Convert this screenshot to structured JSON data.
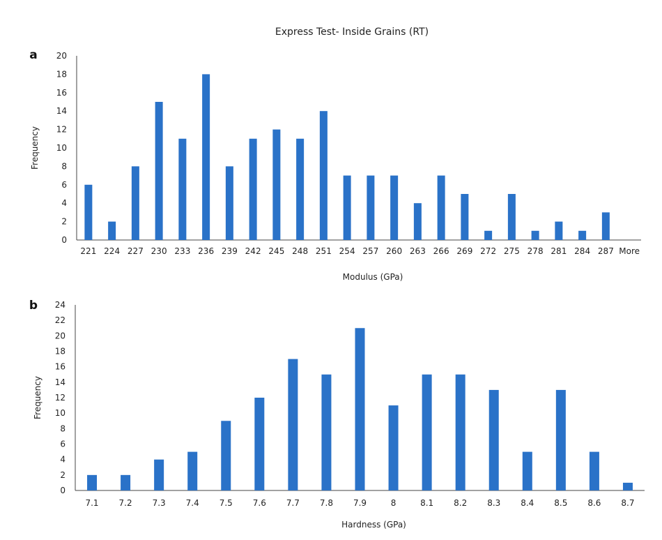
{
  "figure_title": "Express Test- Inside Grains (RT)",
  "chart_data": [
    {
      "type": "bar",
      "panel": "a",
      "title": "Express Test- Inside Grains (RT)",
      "xlabel": "Modulus (GPa)",
      "ylabel": "Frequency",
      "ylim": [
        0,
        20
      ],
      "ytick_step": 2,
      "grid": false,
      "legend": "none",
      "bar_color": "#2a72c8",
      "categories": [
        "221",
        "224",
        "227",
        "230",
        "233",
        "236",
        "239",
        "242",
        "245",
        "248",
        "251",
        "254",
        "257",
        "260",
        "263",
        "266",
        "269",
        "272",
        "275",
        "278",
        "281",
        "284",
        "287",
        "More"
      ],
      "series": [
        {
          "values": [
            6,
            2,
            8,
            15,
            11,
            18,
            8,
            11,
            12,
            11,
            14,
            7,
            7,
            7,
            4,
            7,
            5,
            1,
            5,
            1,
            2,
            1,
            3,
            0
          ]
        }
      ]
    },
    {
      "type": "bar",
      "panel": "b",
      "title": "",
      "xlabel": "Hardness (GPa)",
      "ylabel": "Frequency",
      "ylim": [
        0,
        24
      ],
      "ytick_step": 2,
      "grid": false,
      "legend": "none",
      "bar_color": "#2a72c8",
      "categories": [
        "7.1",
        "7.2",
        "7.3",
        "7.4",
        "7.5",
        "7.6",
        "7.7",
        "7.8",
        "7.9",
        "8",
        "8.1",
        "8.2",
        "8.3",
        "8.4",
        "8.5",
        "8.6",
        "8.7"
      ],
      "series": [
        {
          "values": [
            2,
            2,
            4,
            5,
            9,
            12,
            17,
            15,
            21,
            11,
            15,
            15,
            13,
            5,
            13,
            5,
            1
          ]
        }
      ]
    }
  ]
}
